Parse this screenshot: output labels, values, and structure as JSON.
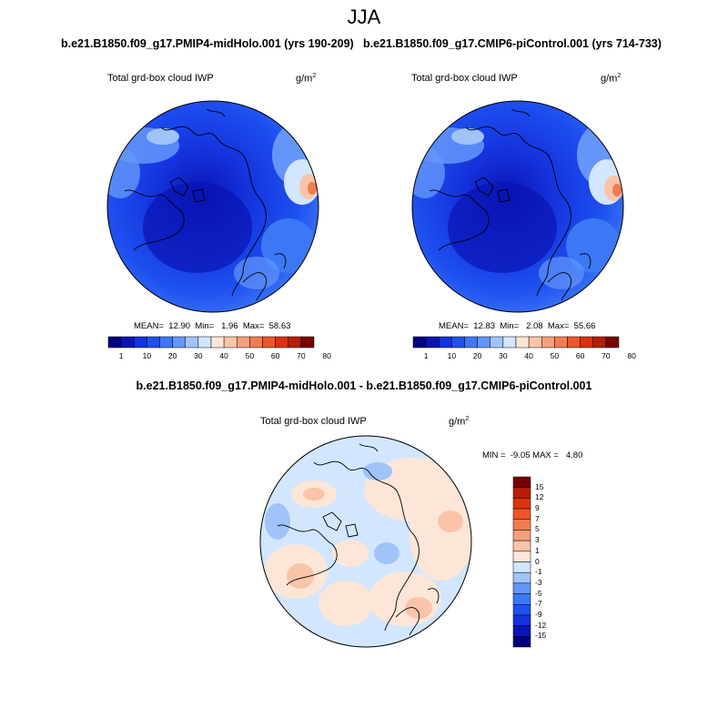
{
  "figure": {
    "season": "JJA"
  },
  "panels": {
    "left": {
      "title": "b.e21.B1850.f09_g17.PMIP4-midHolo.001 (yrs 190-209)",
      "variable": "Total grd-box cloud IWP",
      "units_base": "g/m",
      "units_exp": "2",
      "stats": "MEAN=  12.90  Min=   1.96  Max=  58.63"
    },
    "right": {
      "title": "b.e21.B1850.f09_g17.CMIP6-piControl.001 (yrs 714-733)",
      "variable": "Total grd-box cloud IWP",
      "units_base": "g/m",
      "units_exp": "2",
      "stats": "MEAN=  12.83  Min=   2.08  Max=  55.66"
    },
    "diff": {
      "title": "b.e21.B1850.f09_g17.PMIP4-midHolo.001 - b.e21.B1850.f09_g17.CMIP6-piControl.001",
      "variable": "Total grd-box cloud IWP",
      "units_base": "g/m",
      "units_exp": "2",
      "stats": "MIN =  -9.05 MAX =   4.80"
    }
  },
  "colorbar_main": {
    "colors": [
      "#00007f",
      "#0a14b4",
      "#1432dc",
      "#1e50f0",
      "#3c78f5",
      "#6496fa",
      "#a0c3fa",
      "#d2e6ff",
      "#fde6d7",
      "#f9c4a8",
      "#f5a07a",
      "#f27c50",
      "#ee5528",
      "#dc3210",
      "#b41e08",
      "#780000"
    ],
    "tick_labels": [
      "1",
      "10",
      "20",
      "30",
      "40",
      "50",
      "60",
      "70",
      "80"
    ]
  },
  "colorbar_diff": {
    "colors": [
      "#00007f",
      "#0a14b4",
      "#1432dc",
      "#1e50f0",
      "#3c78f5",
      "#6496fa",
      "#a0c3fa",
      "#d2e6ff",
      "#fde6d7",
      "#f9c4a8",
      "#f5a07a",
      "#f27c50",
      "#ee5528",
      "#dc3210",
      "#b41e08",
      "#780000"
    ],
    "tick_labels": [
      "15",
      "12",
      "9",
      "7",
      "5",
      "3",
      "1",
      "0",
      "-1",
      "-3",
      "-5",
      "-7",
      "-9",
      "-12",
      "-15"
    ]
  }
}
